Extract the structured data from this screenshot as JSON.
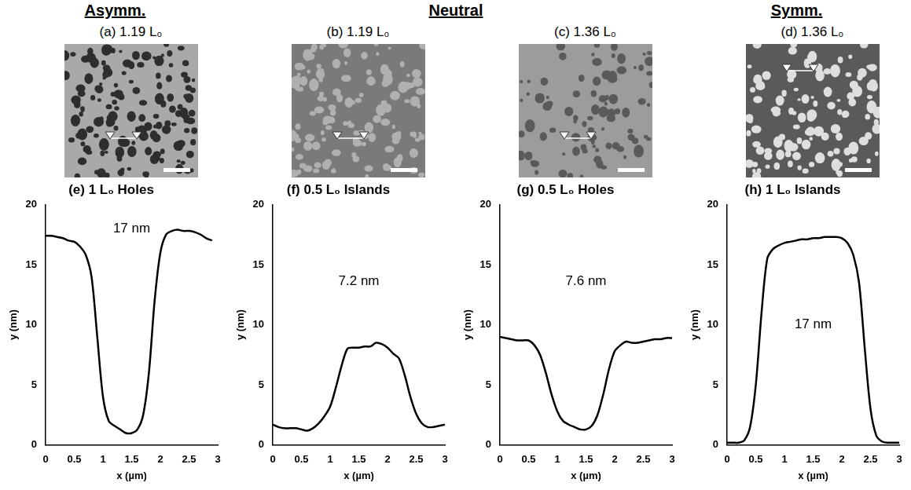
{
  "figure": {
    "groups": [
      {
        "label": "Asymm.",
        "span": 1
      },
      {
        "label": "Neutral",
        "span": 2
      },
      {
        "label": "Symm.",
        "span": 1
      }
    ],
    "images": [
      {
        "title": "(a) 1.19 L₀",
        "feature": "holes"
      },
      {
        "title": "(b) 1.19 L₀",
        "feature": "islands"
      },
      {
        "title": "(c) 1.36 L₀",
        "feature": "holes"
      },
      {
        "title": "(d) 1.36 L₀",
        "feature": "islands"
      }
    ]
  },
  "chart_data": [
    {
      "type": "line",
      "title": "(e) 1 L₀ Holes",
      "annotation": "17 nm",
      "x_label": "x (µm)",
      "y_label": "y (nm)",
      "color": "#000000",
      "grid": false,
      "x": [
        0,
        0.1,
        0.2,
        0.3,
        0.4,
        0.5,
        0.6,
        0.7,
        0.8,
        0.9,
        1.0,
        1.1,
        1.2,
        1.3,
        1.4,
        1.5,
        1.6,
        1.7,
        1.8,
        1.9,
        2.0,
        2.1,
        2.2,
        2.3,
        2.4,
        2.5,
        2.6,
        2.7,
        2.8,
        2.9
      ],
      "values": [
        17.4,
        17.4,
        17.3,
        17.2,
        17.0,
        16.9,
        16.5,
        15.8,
        14.0,
        9.0,
        4.0,
        2.0,
        1.6,
        1.3,
        1.0,
        1.0,
        1.3,
        2.5,
        6.0,
        12.0,
        16.0,
        17.5,
        17.8,
        17.9,
        17.8,
        17.8,
        17.7,
        17.5,
        17.2,
        17.0
      ],
      "xlim": [
        0,
        3
      ],
      "xticks": [
        0,
        0.5,
        1,
        1.5,
        2,
        2.5,
        3
      ],
      "ylim": [
        0,
        20
      ],
      "yticks": [
        0,
        5,
        10,
        15,
        20
      ]
    },
    {
      "type": "line",
      "title": "(f) 0.5 L₀ Islands",
      "annotation": "7.2 nm",
      "x_label": "x (µm)",
      "y_label": "y (nm)",
      "color": "#000000",
      "grid": false,
      "x": [
        0,
        0.1,
        0.2,
        0.3,
        0.4,
        0.5,
        0.6,
        0.7,
        0.8,
        0.9,
        1.0,
        1.1,
        1.2,
        1.3,
        1.4,
        1.5,
        1.6,
        1.7,
        1.8,
        1.9,
        2.0,
        2.1,
        2.2,
        2.3,
        2.4,
        2.5,
        2.6,
        2.7,
        2.8,
        2.9,
        3.0
      ],
      "values": [
        1.7,
        1.5,
        1.4,
        1.4,
        1.4,
        1.3,
        1.2,
        1.4,
        1.8,
        2.4,
        3.2,
        4.8,
        6.6,
        8.0,
        8.1,
        8.1,
        8.2,
        8.2,
        8.5,
        8.4,
        8.1,
        7.6,
        7.2,
        5.8,
        4.0,
        2.6,
        1.8,
        1.5,
        1.5,
        1.6,
        1.7
      ],
      "xlim": [
        0,
        3
      ],
      "xticks": [
        0,
        0.5,
        1,
        1.5,
        2,
        2.5,
        3
      ],
      "ylim": [
        0,
        20
      ],
      "yticks": [
        0,
        5,
        10,
        15,
        20
      ]
    },
    {
      "type": "line",
      "title": "(g) 0.5 L₀ Holes",
      "annotation": "7.6 nm",
      "x_label": "x (µm)",
      "y_label": "y (nm)",
      "color": "#000000",
      "grid": false,
      "x": [
        0,
        0.1,
        0.2,
        0.3,
        0.4,
        0.5,
        0.6,
        0.7,
        0.8,
        0.9,
        1.0,
        1.1,
        1.2,
        1.3,
        1.4,
        1.5,
        1.6,
        1.7,
        1.8,
        1.9,
        2.0,
        2.1,
        2.2,
        2.3,
        2.4,
        2.5,
        2.6,
        2.7,
        2.8,
        2.9,
        3.0
      ],
      "values": [
        9.0,
        8.9,
        8.8,
        8.7,
        8.7,
        8.7,
        8.3,
        7.5,
        6.0,
        4.2,
        2.8,
        2.0,
        1.7,
        1.5,
        1.3,
        1.3,
        1.6,
        2.5,
        4.2,
        6.3,
        7.8,
        8.3,
        8.6,
        8.5,
        8.5,
        8.6,
        8.7,
        8.8,
        8.8,
        8.9,
        8.9
      ],
      "xlim": [
        0,
        3
      ],
      "xticks": [
        0,
        0.5,
        1,
        1.5,
        2,
        2.5,
        3
      ],
      "ylim": [
        0,
        20
      ],
      "yticks": [
        0,
        5,
        10,
        15,
        20
      ]
    },
    {
      "type": "line",
      "title": "(h) 1 L₀ Islands",
      "annotation": "17 nm",
      "x_label": "x (µm)",
      "y_label": "y (nm)",
      "color": "#000000",
      "grid": false,
      "x": [
        0,
        0.1,
        0.2,
        0.3,
        0.4,
        0.5,
        0.6,
        0.7,
        0.8,
        0.9,
        1.0,
        1.1,
        1.2,
        1.3,
        1.4,
        1.5,
        1.6,
        1.7,
        1.8,
        1.9,
        2.0,
        2.1,
        2.2,
        2.3,
        2.4,
        2.5,
        2.6,
        2.7,
        2.8,
        2.9,
        3.0
      ],
      "values": [
        0.2,
        0.2,
        0.2,
        0.4,
        1.5,
        5.0,
        11.0,
        15.5,
        16.3,
        16.6,
        16.8,
        16.9,
        17.0,
        17.1,
        17.1,
        17.2,
        17.2,
        17.3,
        17.3,
        17.3,
        17.2,
        16.8,
        15.8,
        13.5,
        8.0,
        3.0,
        0.8,
        0.3,
        0.2,
        0.2,
        0.2
      ],
      "xlim": [
        0,
        3
      ],
      "xticks": [
        0,
        0.5,
        1,
        1.5,
        2,
        2.5,
        3
      ],
      "ylim": [
        0,
        20
      ],
      "yticks": [
        0,
        5,
        10,
        15,
        20
      ]
    }
  ]
}
